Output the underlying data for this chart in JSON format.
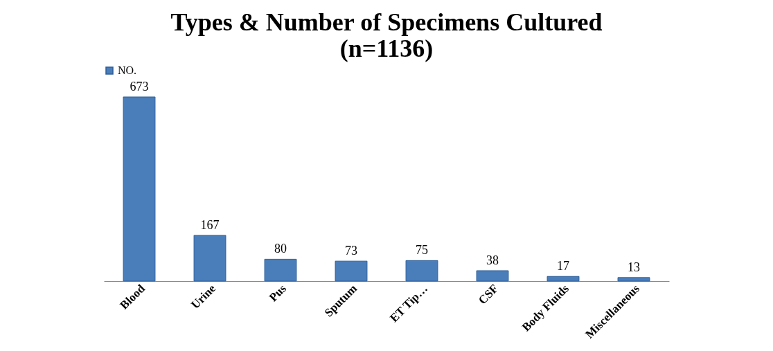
{
  "chart_data": {
    "type": "bar",
    "title": "Types & Number of Specimens Cultured\n(n=1136)",
    "categories": [
      "Blood",
      "Urine",
      "Pus",
      "Sputum",
      "ET Tip…",
      "CSF",
      "Body Fluids",
      "Miscellaneous"
    ],
    "series": [
      {
        "name": "NO.",
        "color": "#4a7ebb",
        "values": [
          673,
          167,
          80,
          73,
          75,
          38,
          17,
          13
        ]
      }
    ],
    "data_labels": true,
    "legend": "top",
    "grid": false
  }
}
